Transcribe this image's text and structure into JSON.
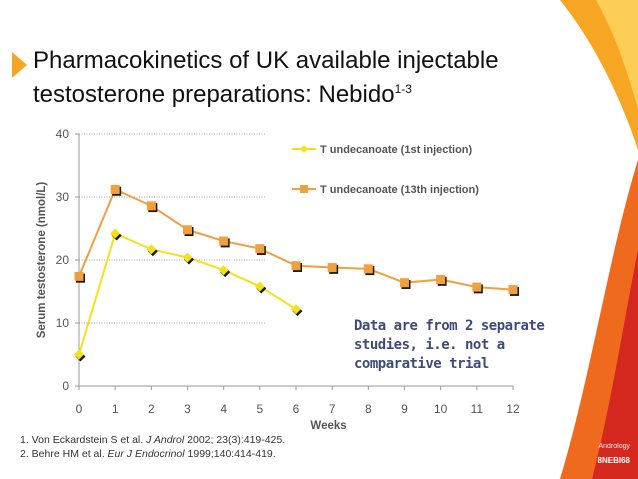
{
  "slide": {
    "title_main": "Pharmacokinetics of UK available injectable testosterone preparations:  Nebido",
    "title_sup": "1-3",
    "note": "Data are from 2 separate studies, i.e. not a comparative trial",
    "references": [
      {
        "authors": "1. Von Eckardstein  S et al.  ",
        "journal": "J Androl",
        "rest": " 2002; 23(3):419-425."
      },
      {
        "authors": "2. Behre HM et al. ",
        "journal": "Eur J Endocrinol",
        "rest": " 1999;140:414-419."
      }
    ],
    "brand_logo_text": "Andrology",
    "slide_code": "8NEBI68",
    "colors": {
      "accent_orange": "#f6a623",
      "deep_orange": "#ef6a1c",
      "note_text": "#3d4b7a"
    }
  },
  "chart_data": {
    "type": "line",
    "title": "",
    "xlabel": "Weeks",
    "ylabel": "Serum testosterone (nmol/L)",
    "xlim": [
      0,
      12
    ],
    "ylim": [
      0,
      40
    ],
    "x_ticks": [
      0,
      1,
      2,
      3,
      4,
      5,
      6,
      7,
      8,
      9,
      10,
      11,
      12
    ],
    "y_ticks": [
      0,
      10,
      20,
      30,
      40
    ],
    "grid": "horizontal dotted",
    "legend_position": "top-right",
    "series": [
      {
        "name": "T undecanoate (1st injection)",
        "color": "#f5e11a",
        "marker": "diamond",
        "x": [
          0,
          1,
          2,
          3,
          4,
          5,
          6
        ],
        "values": [
          5,
          24.2,
          21.7,
          20.4,
          18.4,
          15.8,
          12.2
        ]
      },
      {
        "name": "T undecanoate (13th injection)",
        "color": "#f0a03c",
        "marker": "square",
        "x": [
          0,
          1,
          2,
          3,
          4,
          5,
          6,
          7,
          8,
          9,
          10,
          11,
          12
        ],
        "values": [
          17.4,
          31.2,
          28.6,
          24.8,
          23,
          21.8,
          19.1,
          18.8,
          18.6,
          16.4,
          16.9,
          15.7,
          15.3
        ]
      }
    ]
  }
}
